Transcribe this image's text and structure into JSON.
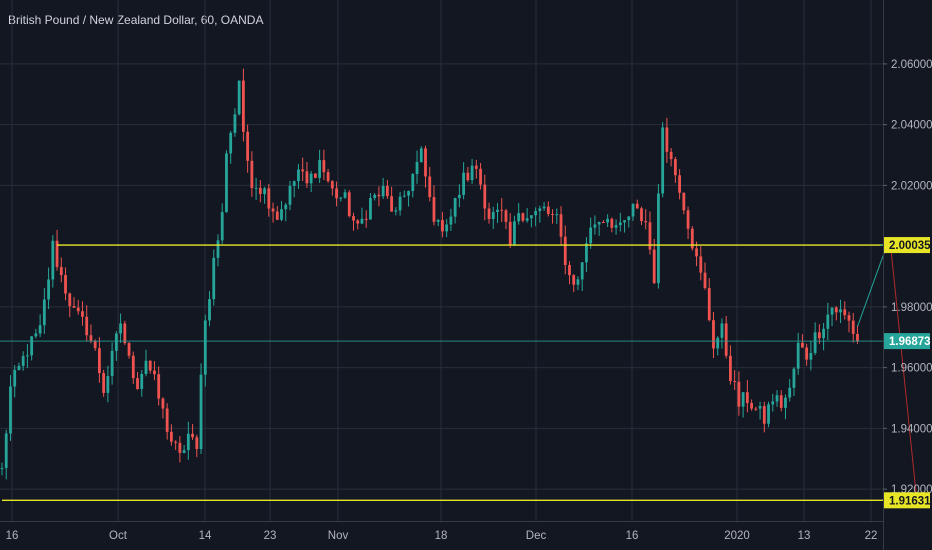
{
  "chart_data": {
    "type": "candlestick",
    "title": "British Pound / New Zealand Dollar, 60, OANDA",
    "ylim": [
      1.9095,
      2.0705
    ],
    "y_ticks": [
      "2.06000",
      "2.04000",
      "2.02000",
      "1.98000",
      "1.96000",
      "1.94000",
      "1.92000"
    ],
    "x_ticks": [
      "16",
      "Oct",
      "14",
      "23",
      "Nov",
      "18",
      "Dec",
      "16",
      "2020",
      "13",
      "22"
    ],
    "grid": true,
    "colors": {
      "up": "#26a69a",
      "down": "#ef5350",
      "background": "#131722",
      "grid": "#2a2e39",
      "level": "#e8e526",
      "current": "#26a69a"
    },
    "price_path": [
      [
        0,
        1.926
      ],
      [
        2,
        1.953
      ],
      [
        6,
        1.966
      ],
      [
        9,
        1.972
      ],
      [
        11,
        1.99
      ],
      [
        12,
        2.0
      ],
      [
        14,
        1.99
      ],
      [
        17,
        1.978
      ],
      [
        20,
        1.973
      ],
      [
        22,
        1.965
      ],
      [
        24,
        1.953
      ],
      [
        26,
        1.963
      ],
      [
        28,
        1.975
      ],
      [
        30,
        1.962
      ],
      [
        32,
        1.955
      ],
      [
        34,
        1.963
      ],
      [
        36,
        1.955
      ],
      [
        38,
        1.945
      ],
      [
        40,
        1.936
      ],
      [
        42,
        1.93
      ],
      [
        44,
        1.938
      ],
      [
        46,
        1.932
      ],
      [
        47,
        1.96
      ],
      [
        48,
        1.975
      ],
      [
        50,
        1.995
      ],
      [
        52,
        2.01
      ],
      [
        53,
        2.032
      ],
      [
        55,
        2.044
      ],
      [
        56,
        2.055
      ],
      [
        57,
        2.035
      ],
      [
        59,
        2.022
      ],
      [
        62,
        2.018
      ],
      [
        65,
        2.01
      ],
      [
        68,
        2.018
      ],
      [
        70,
        2.025
      ],
      [
        72,
        2.02
      ],
      [
        75,
        2.028
      ],
      [
        78,
        2.018
      ],
      [
        81,
        2.015
      ],
      [
        84,
        2.005
      ],
      [
        87,
        2.015
      ],
      [
        90,
        2.018
      ],
      [
        93,
        2.01
      ],
      [
        96,
        2.02
      ],
      [
        99,
        2.03
      ],
      [
        101,
        2.015
      ],
      [
        103,
        2.006
      ],
      [
        106,
        2.01
      ],
      [
        109,
        2.022
      ],
      [
        112,
        2.026
      ],
      [
        115,
        2.01
      ],
      [
        118,
        2.01
      ],
      [
        120,
        2.0
      ],
      [
        122,
        2.012
      ],
      [
        125,
        2.01
      ],
      [
        128,
        2.012
      ],
      [
        131,
        2.008
      ],
      [
        134,
        1.99
      ],
      [
        136,
        1.988
      ],
      [
        138,
        2.002
      ],
      [
        140,
        2.008
      ],
      [
        143,
        2.01
      ],
      [
        146,
        2.005
      ],
      [
        149,
        2.012
      ],
      [
        152,
        2.008
      ],
      [
        154,
        1.99
      ],
      [
        156,
        2.04
      ],
      [
        158,
        2.028
      ],
      [
        160,
        2.02
      ],
      [
        162,
        2.008
      ],
      [
        164,
        1.995
      ],
      [
        166,
        1.985
      ],
      [
        168,
        1.968
      ],
      [
        170,
        1.972
      ],
      [
        172,
        1.958
      ],
      [
        174,
        1.948
      ],
      [
        176,
        1.95
      ],
      [
        178,
        1.946
      ],
      [
        180,
        1.943
      ],
      [
        182,
        1.95
      ],
      [
        184,
        1.948
      ],
      [
        186,
        1.952
      ],
      [
        188,
        1.967
      ],
      [
        190,
        1.964
      ],
      [
        192,
        1.97
      ],
      [
        194,
        1.975
      ],
      [
        196,
        1.98
      ],
      [
        198,
        1.978
      ],
      [
        200,
        1.975
      ],
      [
        202,
        1.969
      ]
    ],
    "levels": [
      {
        "name": "upper-level",
        "value": 2.00035,
        "label": "2.00035",
        "start_index": 13
      },
      {
        "name": "lower-level",
        "value": 1.91631,
        "label": "1.91631",
        "start_index": 0
      }
    ],
    "current_price": {
      "value": 1.96873,
      "label": "1.96873"
    },
    "projection": [
      [
        202,
        1.9735
      ],
      [
        209,
        2.0005
      ],
      [
        216,
        1.9165
      ]
    ]
  }
}
